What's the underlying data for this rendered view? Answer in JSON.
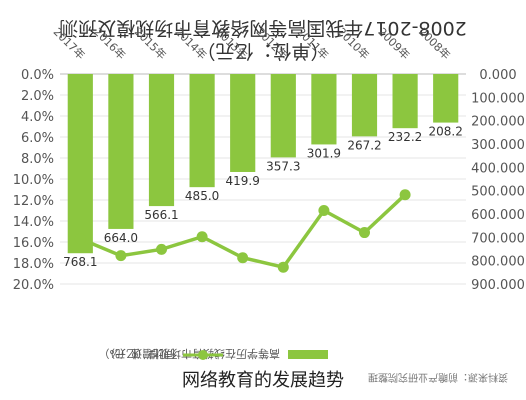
{
  "chart_data": {
    "type": "bar",
    "title": "2008-2017年我国高等网络教育市场规模及预测",
    "subtitle": "（单位：亿元）",
    "categories": [
      "2008年",
      "2009年",
      "2010年",
      "2011年",
      "2012年",
      "2013年",
      "2014年",
      "2015年",
      "2016年",
      "2017年"
    ],
    "series": [
      {
        "name": "高等学历在线教育市场规模（亿元）",
        "kind": "bar",
        "axis": "right",
        "values": [
          208.2,
          232.2,
          267.2,
          301.9,
          357.3,
          419.9,
          485.0,
          566.1,
          664.0,
          768.1
        ],
        "labels": [
          "208.2",
          "232.2",
          "267.2",
          "301.9",
          "357.3",
          "419.9",
          "485.0",
          "566.1",
          "664.0",
          "768.1"
        ]
      },
      {
        "name": "同比增速（%）",
        "kind": "line",
        "axis": "left",
        "values": [
          null,
          11.5,
          15.1,
          13.0,
          18.4,
          17.5,
          15.5,
          16.7,
          17.3,
          15.7
        ]
      }
    ],
    "left_axis": {
      "ylim": [
        0,
        20
      ],
      "ticks": [
        "0.0%",
        "2.0%",
        "4.0%",
        "6.0%",
        "8.0%",
        "10.0%",
        "12.0%",
        "14.0%",
        "16.0%",
        "18.0%",
        "20.0%"
      ]
    },
    "right_axis": {
      "ylim": [
        0,
        900
      ],
      "ticks": [
        "0.000",
        "100.000",
        "200.000",
        "300.000",
        "400.000",
        "500.000",
        "600.000",
        "700.000",
        "800.000",
        "900.000"
      ]
    },
    "bar_color": "#8cc63f",
    "line_color": "#8cc63f",
    "legend_position": "bottom",
    "legend": {
      "bar_label": "高等学历在线教育市场规模（亿元）",
      "line_label": "同比增速（%）"
    },
    "source": "资料来源：前瞻产业研究院整理",
    "orientation": "rotated 180 degrees"
  },
  "caption": "网络教育的发展趋势"
}
